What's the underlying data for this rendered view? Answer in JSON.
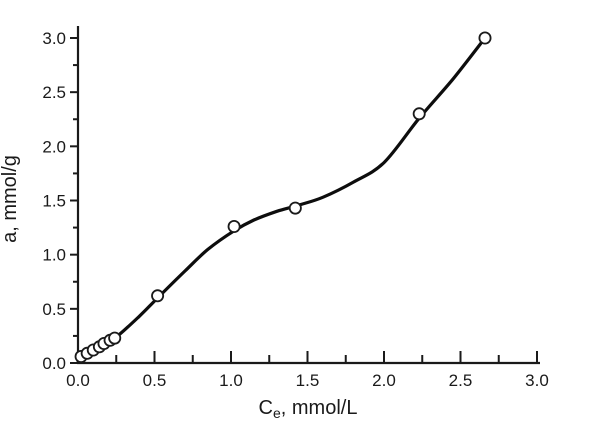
{
  "chart_data": {
    "type": "scatter",
    "title": "",
    "xlabel": {
      "main": "C",
      "sub": "e",
      "rest": ", mmol/L"
    },
    "ylabel": "a, mmol/g",
    "xlim": [
      0.0,
      3.0
    ],
    "ylim": [
      0.0,
      3.0
    ],
    "x_major_ticks": [
      0.0,
      0.5,
      1.0,
      1.5,
      2.0,
      2.5,
      3.0
    ],
    "x_minor_ticks": [
      0.25,
      0.75,
      1.25,
      1.75,
      2.25,
      2.75
    ],
    "y_major_ticks": [
      0.0,
      0.5,
      1.0,
      1.5,
      2.0,
      2.5,
      3.0
    ],
    "y_minor_ticks": [
      0.25,
      0.75,
      1.25,
      1.75,
      2.25,
      2.75
    ],
    "tick_label_decimals": 1,
    "grid": false,
    "legend": null,
    "series": [
      {
        "name": "experimental-points",
        "kind": "scatter",
        "marker": "open-circle",
        "points": [
          [
            0.02,
            0.06
          ],
          [
            0.06,
            0.09
          ],
          [
            0.1,
            0.12
          ],
          [
            0.14,
            0.15
          ],
          [
            0.17,
            0.18
          ],
          [
            0.21,
            0.21
          ],
          [
            0.24,
            0.23
          ],
          [
            0.52,
            0.62
          ],
          [
            1.02,
            1.26
          ],
          [
            1.42,
            1.43
          ],
          [
            2.23,
            2.3
          ],
          [
            2.66,
            3.0
          ]
        ]
      },
      {
        "name": "fit-curve",
        "kind": "smooth-line",
        "points": [
          [
            0.0,
            0.02
          ],
          [
            0.12,
            0.12
          ],
          [
            0.25,
            0.24
          ],
          [
            0.4,
            0.43
          ],
          [
            0.52,
            0.6
          ],
          [
            0.7,
            0.85
          ],
          [
            0.85,
            1.05
          ],
          [
            1.02,
            1.22
          ],
          [
            1.15,
            1.32
          ],
          [
            1.3,
            1.4
          ],
          [
            1.45,
            1.46
          ],
          [
            1.6,
            1.53
          ],
          [
            1.8,
            1.67
          ],
          [
            2.0,
            1.85
          ],
          [
            2.23,
            2.26
          ],
          [
            2.45,
            2.62
          ],
          [
            2.66,
            3.0
          ]
        ]
      }
    ],
    "colors": {
      "axis": "#1a1a1a",
      "curve": "#0d0d0d",
      "marker_stroke": "#1a1a1a",
      "marker_fill": "#ffffff",
      "background": "#ffffff"
    }
  }
}
